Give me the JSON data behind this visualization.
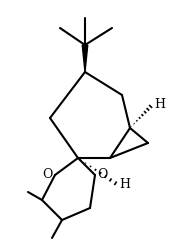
{
  "background": "#ffffff",
  "line_color": "#000000",
  "line_width": 1.5,
  "font_size": 9,
  "label_H1": "H",
  "label_H2": "H",
  "label_O1": "O",
  "label_O2": "O"
}
